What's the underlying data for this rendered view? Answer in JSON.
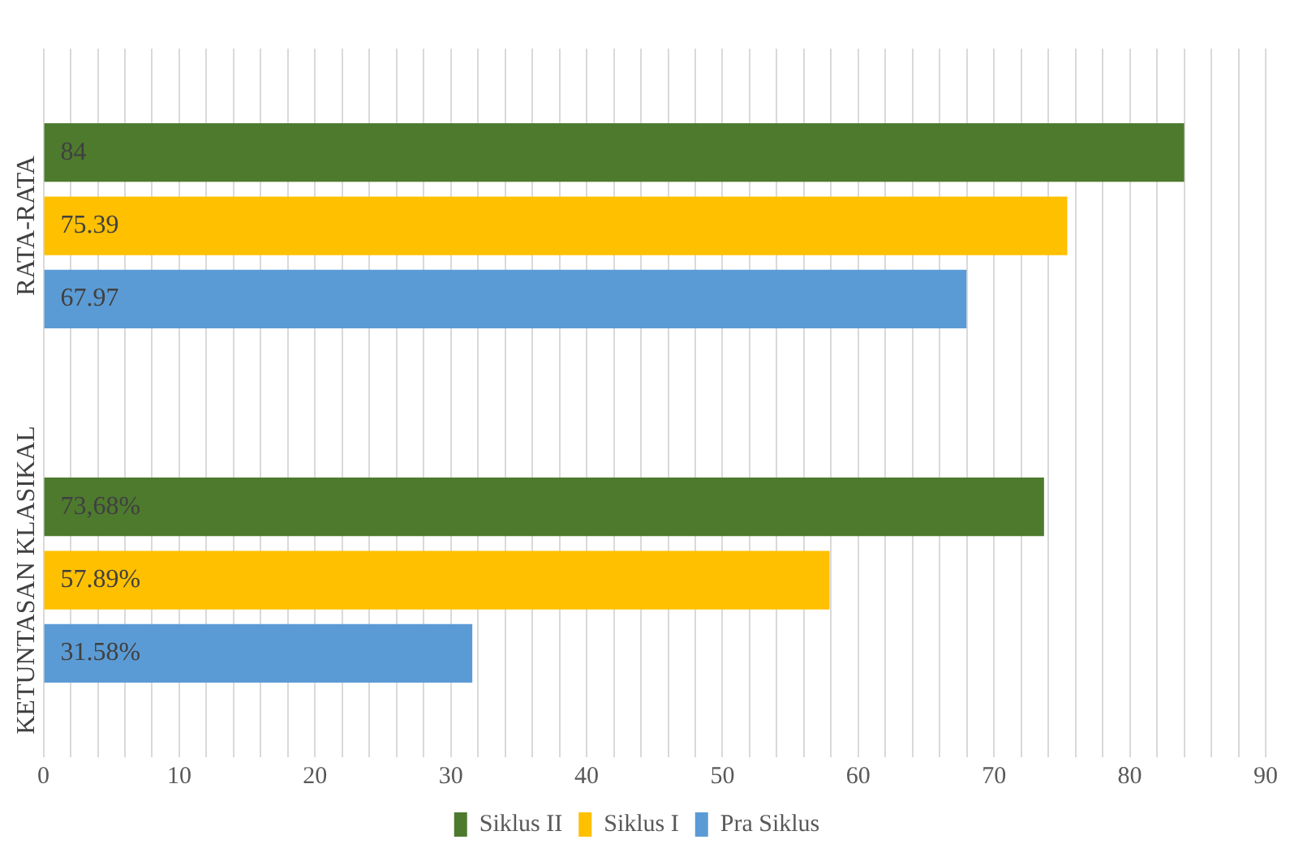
{
  "chart_data": {
    "type": "bar",
    "orientation": "horizontal",
    "categories": [
      "RATA-RATA",
      "KETUNTASAN KLASIKAL"
    ],
    "series": [
      {
        "name": "Siklus II",
        "color": "#4e7a2e",
        "values": [
          84,
          73.68
        ],
        "value_labels": [
          "84",
          "73,68%"
        ]
      },
      {
        "name": "Siklus I",
        "color": "#ffc000",
        "values": [
          75.39,
          57.89
        ],
        "value_labels": [
          "75.39",
          "57.89%"
        ]
      },
      {
        "name": "Pra Siklus",
        "color": "#5b9bd5",
        "values": [
          67.97,
          31.58
        ],
        "value_labels": [
          "67.97",
          "31.58%"
        ]
      }
    ],
    "xlim": [
      0,
      90
    ],
    "xticks": [
      0,
      {
        "value": 2,
        "label": null
      },
      {
        "value": 4,
        "label": null
      },
      {
        "value": 6,
        "label": null
      },
      {
        "value": 8,
        "label": null
      },
      10,
      {
        "value": 12,
        "label": null
      },
      {
        "value": 14,
        "label": null
      },
      {
        "value": 16,
        "label": null
      },
      {
        "value": 18,
        "label": null
      },
      20,
      {
        "value": 22,
        "label": null
      },
      {
        "value": 24,
        "label": null
      },
      {
        "value": 26,
        "label": null
      },
      {
        "value": 28,
        "label": null
      },
      30,
      {
        "value": 32,
        "label": null
      },
      {
        "value": 34,
        "label": null
      },
      {
        "value": 36,
        "label": null
      },
      {
        "value": 38,
        "label": null
      },
      40,
      {
        "value": 42,
        "label": null
      },
      {
        "value": 44,
        "label": null
      },
      {
        "value": 46,
        "label": null
      },
      {
        "value": 48,
        "label": null
      },
      50,
      {
        "value": 52,
        "label": null
      },
      {
        "value": 54,
        "label": null
      },
      {
        "value": 56,
        "label": null
      },
      {
        "value": 58,
        "label": null
      },
      60,
      {
        "value": 62,
        "label": null
      },
      {
        "value": 64,
        "label": null
      },
      {
        "value": 66,
        "label": null
      },
      {
        "value": 68,
        "label": null
      },
      70,
      {
        "value": 72,
        "label": null
      },
      {
        "value": 74,
        "label": null
      },
      {
        "value": 76,
        "label": null
      },
      {
        "value": 78,
        "label": null
      },
      80,
      {
        "value": 82,
        "label": null
      },
      {
        "value": 84,
        "label": null
      },
      {
        "value": 86,
        "label": null
      },
      {
        "value": 88,
        "label": null
      },
      90
    ],
    "grid": "x",
    "legend": "bottom"
  }
}
